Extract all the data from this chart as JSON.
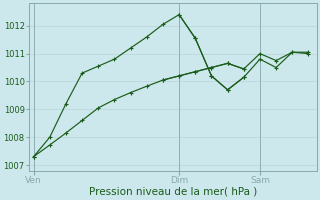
{
  "background_color": "#cde8ec",
  "grid_color": "#b8d4d8",
  "line_color": "#1a5c1a",
  "xlabel": "Pression niveau de la mer( hPa )",
  "xlabel_fontsize": 7.5,
  "ylim": [
    1006.8,
    1012.8
  ],
  "yticks": [
    1007,
    1008,
    1009,
    1010,
    1011,
    1012
  ],
  "ytick_fontsize": 6,
  "xtick_fontsize": 6.5,
  "spine_color": "#88aaaa",
  "s1_x": [
    0,
    1,
    2,
    3,
    4,
    5,
    6,
    7,
    8,
    9,
    10,
    11,
    12,
    13
  ],
  "s1_y": [
    1007.3,
    1008.0,
    1009.2,
    1010.3,
    1010.55,
    1010.8,
    1011.2,
    1011.6,
    1012.05,
    1012.4,
    1011.55,
    1010.2,
    1009.7,
    1010.15
  ],
  "s2_x": [
    0,
    1,
    2,
    3,
    4,
    5,
    6,
    7,
    8,
    9,
    10,
    11,
    12,
    13
  ],
  "s2_y": [
    1007.3,
    1007.72,
    1008.15,
    1008.6,
    1009.05,
    1009.35,
    1009.6,
    1009.83,
    1010.05,
    1010.2,
    1010.35,
    1010.5,
    1010.65,
    1010.45
  ],
  "m1_x": [
    0,
    1,
    2,
    3,
    4,
    5,
    6,
    7,
    8,
    9,
    10,
    11,
    12,
    13
  ],
  "m1_y": [
    1007.3,
    1008.0,
    1009.2,
    1010.3,
    1010.55,
    1010.8,
    1011.2,
    1011.6,
    1012.05,
    1012.4,
    1011.55,
    1010.2,
    1009.7,
    1010.15
  ],
  "m2_x": [
    0,
    1,
    2,
    3,
    4,
    5,
    6,
    7,
    8,
    9,
    10,
    11,
    12,
    13
  ],
  "m2_y": [
    1007.3,
    1007.72,
    1008.15,
    1008.6,
    1009.05,
    1009.35,
    1009.6,
    1009.83,
    1010.05,
    1010.2,
    1010.35,
    1010.5,
    1010.65,
    1010.45
  ],
  "s1_right_x": [
    9,
    10,
    11,
    12,
    13,
    14,
    15,
    16,
    17
  ],
  "s1_right_y": [
    1012.4,
    1011.55,
    1010.2,
    1009.7,
    1010.15,
    1010.8,
    1010.5,
    1011.05,
    1011.0
  ],
  "s2_right_x": [
    8,
    9,
    10,
    11,
    12,
    13,
    14,
    15,
    16,
    17
  ],
  "s2_right_y": [
    1010.05,
    1010.2,
    1010.35,
    1010.5,
    1010.65,
    1010.45,
    1011.0,
    1010.75,
    1011.05,
    1011.05
  ],
  "ven_x": 0,
  "dim_x": 9,
  "sam_x": 14,
  "xlim": [
    -0.3,
    17.5
  ]
}
